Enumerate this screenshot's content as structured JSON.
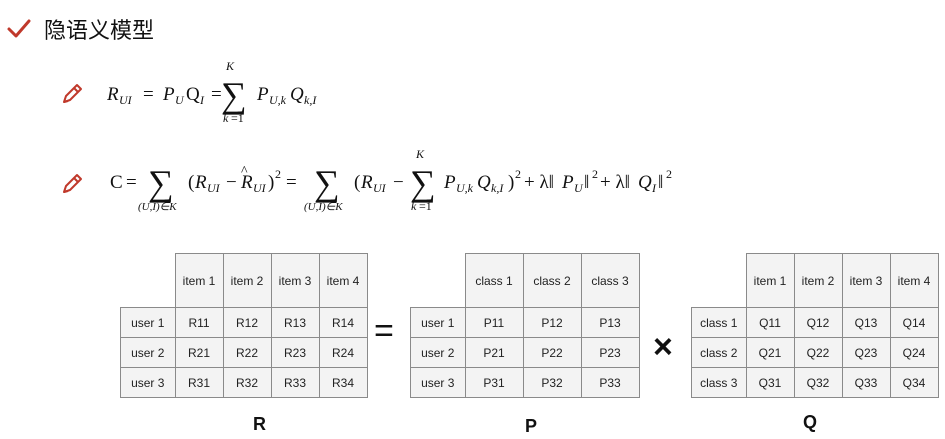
{
  "heading": {
    "title": "隐语义模型"
  },
  "formula1": {
    "text": "R_UI = P_U Q_I = Σ_{k=1}^{K} P_{U,k} Q_{k,I}"
  },
  "formula2": {
    "text": "C = Σ_{(U,I)∈K} (R_UI − R̂_UI)^2 = Σ_{(U,I)∈K} (R_UI − Σ_{k=1}^{K} P_{U,k} Q_{k,I})^2 + λ‖P_U‖^2 + λ‖Q_I‖^2"
  },
  "matrix_R": {
    "name": "R",
    "cols": [
      "item 1",
      "item 2",
      "item 3",
      "item 4"
    ],
    "rows": [
      {
        "label": "user 1",
        "cells": [
          "R11",
          "R12",
          "R13",
          "R14"
        ]
      },
      {
        "label": "user 2",
        "cells": [
          "R21",
          "R22",
          "R23",
          "R24"
        ]
      },
      {
        "label": "user 3",
        "cells": [
          "R31",
          "R32",
          "R33",
          "R34"
        ]
      }
    ]
  },
  "matrix_P": {
    "name": "P",
    "cols": [
      "class 1",
      "class 2",
      "class 3"
    ],
    "rows": [
      {
        "label": "user 1",
        "cells": [
          "P11",
          "P12",
          "P13"
        ]
      },
      {
        "label": "user 2",
        "cells": [
          "P21",
          "P22",
          "P23"
        ]
      },
      {
        "label": "user 3",
        "cells": [
          "P31",
          "P32",
          "P33"
        ]
      }
    ]
  },
  "matrix_Q": {
    "name": "Q",
    "cols": [
      "item 1",
      "item 2",
      "item 3",
      "item 4"
    ],
    "rows": [
      {
        "label": "class 1",
        "cells": [
          "Q11",
          "Q12",
          "Q13",
          "Q14"
        ]
      },
      {
        "label": "class 2",
        "cells": [
          "Q21",
          "Q22",
          "Q23",
          "Q24"
        ]
      },
      {
        "label": "class 3",
        "cells": [
          "Q31",
          "Q32",
          "Q33",
          "Q34"
        ]
      }
    ]
  },
  "operators": {
    "equals": "=",
    "times": "×"
  },
  "icons": {
    "heading": "checkmark-icon",
    "formula": "pencil-icon"
  },
  "colors": {
    "accent": "#c0392b",
    "cell_bg": "#f3f3f3",
    "border": "#8a8a8a"
  }
}
